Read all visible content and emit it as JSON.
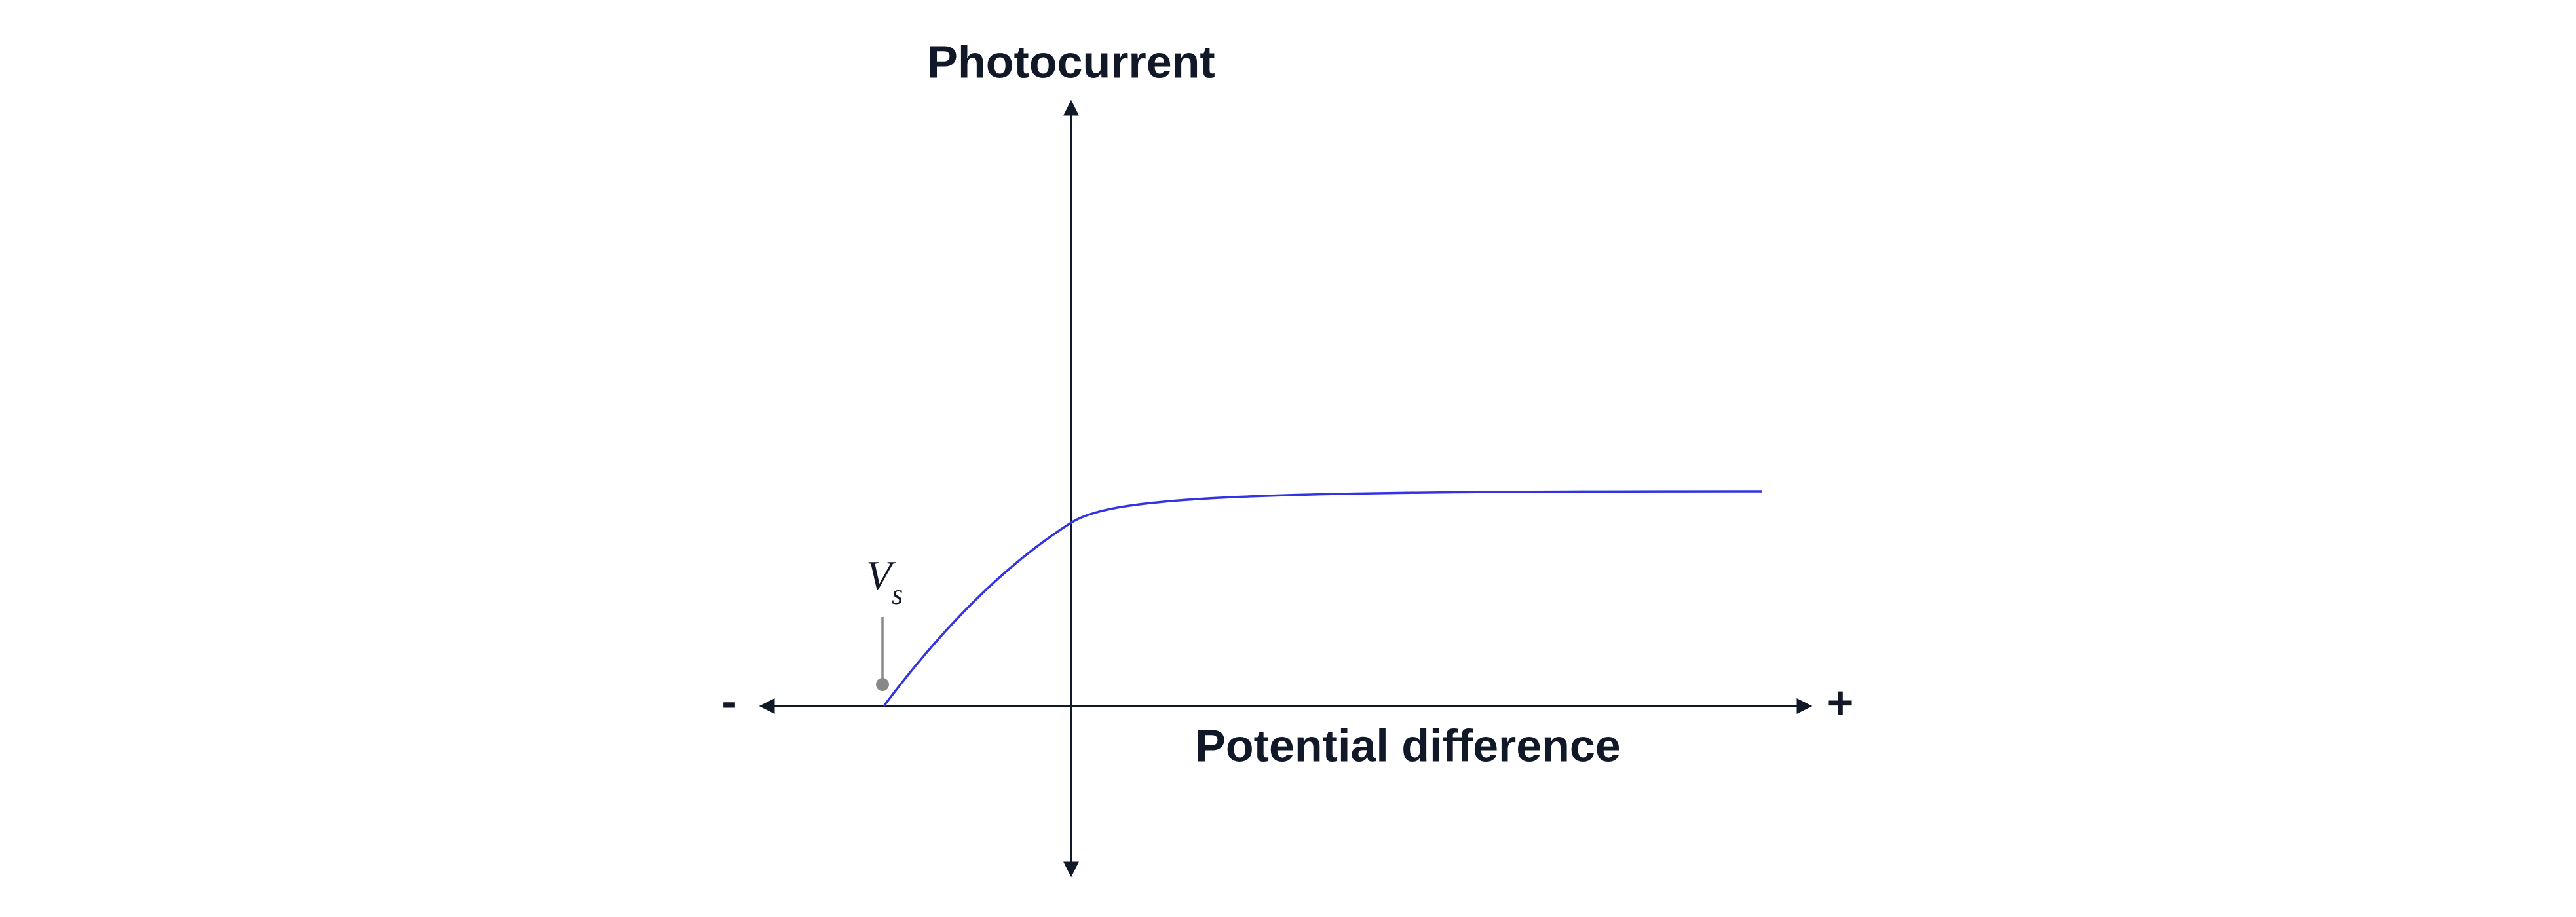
{
  "axes": {
    "y_label": "Photocurrent",
    "x_label": "Potential difference",
    "negative": "-",
    "positive": "+"
  },
  "annotation": {
    "symbol": "V",
    "subscript": "s"
  }
}
